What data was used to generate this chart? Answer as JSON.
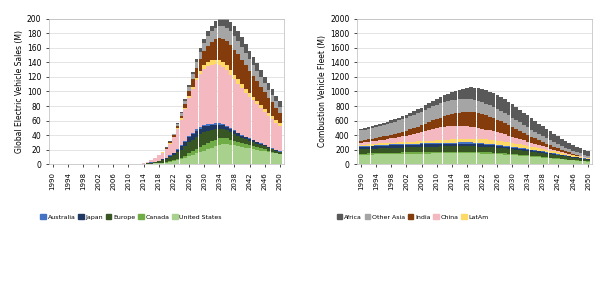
{
  "years": [
    1990,
    1991,
    1992,
    1993,
    1994,
    1995,
    1996,
    1997,
    1998,
    1999,
    2000,
    2001,
    2002,
    2003,
    2004,
    2005,
    2006,
    2007,
    2008,
    2009,
    2010,
    2011,
    2012,
    2013,
    2014,
    2015,
    2016,
    2017,
    2018,
    2019,
    2020,
    2021,
    2022,
    2023,
    2024,
    2025,
    2026,
    2027,
    2028,
    2029,
    2030,
    2031,
    2032,
    2033,
    2034,
    2035,
    2036,
    2037,
    2038,
    2039,
    2040,
    2041,
    2042,
    2043,
    2044,
    2045,
    2046,
    2047,
    2048,
    2049,
    2050
  ],
  "ev_data": {
    "United States": [
      0,
      0,
      0,
      0,
      0,
      0,
      0,
      0,
      0,
      0,
      0,
      0,
      0,
      0,
      0,
      0,
      0,
      0,
      0,
      0,
      0,
      0,
      0.1,
      0.2,
      0.4,
      0.6,
      0.9,
      1.2,
      1.6,
      2.0,
      2.5,
      3.2,
      4.0,
      5.5,
      7,
      9,
      11,
      13,
      15,
      17,
      19,
      21,
      23,
      25,
      27,
      28,
      28,
      27,
      26,
      25,
      24,
      23,
      22,
      21,
      20,
      19,
      18,
      17,
      16,
      15,
      14
    ],
    "Canada": [
      0,
      0,
      0,
      0,
      0,
      0,
      0,
      0,
      0,
      0,
      0,
      0,
      0,
      0,
      0,
      0,
      0,
      0,
      0,
      0,
      0,
      0,
      0,
      0,
      0.05,
      0.1,
      0.15,
      0.2,
      0.3,
      0.5,
      0.7,
      1.0,
      1.4,
      1.8,
      2.3,
      3,
      4,
      5,
      6,
      7,
      8,
      8.5,
      9,
      9,
      8.5,
      8,
      7.5,
      7,
      6.5,
      6,
      5.5,
      5,
      4.5,
      4,
      3.5,
      3,
      2.5,
      2,
      1.5,
      1,
      0.8
    ],
    "Europe": [
      0,
      0,
      0,
      0,
      0,
      0,
      0,
      0,
      0,
      0,
      0,
      0,
      0,
      0,
      0,
      0,
      0,
      0,
      0,
      0,
      0,
      0,
      0.1,
      0.2,
      0.4,
      0.7,
      1.0,
      1.5,
      2.2,
      3,
      4,
      5.5,
      7,
      9,
      11,
      13,
      15,
      16,
      17,
      17,
      17,
      16,
      15,
      14,
      13,
      12,
      11,
      10,
      9,
      8,
      7,
      6.5,
      6,
      5.5,
      5,
      4.5,
      4,
      3.5,
      3,
      2.5,
      2
    ],
    "Japan": [
      0,
      0,
      0,
      0,
      0,
      0,
      0,
      0,
      0,
      0,
      0,
      0,
      0,
      0,
      0,
      0,
      0,
      0,
      0,
      0,
      0,
      0,
      0.05,
      0.1,
      0.2,
      0.3,
      0.5,
      0.7,
      1.0,
      1.3,
      1.7,
      2.2,
      3,
      4,
      5,
      6,
      7,
      7.5,
      8,
      8,
      8,
      7.5,
      7,
      6.5,
      6,
      5.5,
      5,
      4.5,
      4,
      3.5,
      3,
      2.8,
      2.5,
      2.3,
      2,
      1.8,
      1.5,
      1.3,
      1.1,
      0.9,
      0.7
    ],
    "Australia": [
      0,
      0,
      0,
      0,
      0,
      0,
      0,
      0,
      0,
      0,
      0,
      0,
      0,
      0,
      0,
      0,
      0,
      0,
      0,
      0,
      0,
      0,
      0,
      0,
      0.02,
      0.04,
      0.06,
      0.1,
      0.15,
      0.2,
      0.3,
      0.4,
      0.6,
      0.8,
      1.0,
      1.3,
      1.6,
      1.8,
      2,
      2,
      2,
      1.9,
      1.8,
      1.7,
      1.6,
      1.5,
      1.4,
      1.3,
      1.2,
      1.1,
      1.0,
      0.9,
      0.85,
      0.8,
      0.75,
      0.7,
      0.65,
      0.6,
      0.55,
      0.5,
      0.45
    ]
  },
  "ev_data2": {
    "China": [
      0,
      0,
      0,
      0,
      0,
      0,
      0,
      0,
      0,
      0,
      0,
      0,
      0,
      0,
      0,
      0,
      0,
      0,
      0,
      0,
      0,
      0.1,
      0.3,
      0.5,
      1,
      2,
      3,
      5,
      7,
      9,
      12,
      16,
      21,
      28,
      35,
      43,
      52,
      60,
      67,
      73,
      77,
      80,
      81,
      81,
      80,
      78,
      76,
      73,
      70,
      67,
      64,
      60,
      57,
      54,
      51,
      48,
      45,
      42,
      40,
      37,
      35
    ],
    "LatAm": [
      0,
      0,
      0,
      0,
      0,
      0,
      0,
      0,
      0,
      0,
      0,
      0,
      0,
      0,
      0,
      0,
      0,
      0,
      0,
      0,
      0,
      0,
      0,
      0,
      0.02,
      0.05,
      0.1,
      0.15,
      0.2,
      0.3,
      0.4,
      0.6,
      0.9,
      1.2,
      1.6,
      2.1,
      2.7,
      3.3,
      4,
      4.6,
      5.2,
      5.7,
      6.1,
      6.4,
      6.6,
      6.7,
      6.7,
      6.6,
      6.5,
      6.3,
      6.1,
      5.8,
      5.5,
      5.2,
      4.9,
      4.6,
      4.3,
      4,
      3.7,
      3.4,
      3.1
    ],
    "India": [
      0,
      0,
      0,
      0,
      0,
      0,
      0,
      0,
      0,
      0,
      0,
      0,
      0,
      0,
      0,
      0,
      0,
      0,
      0,
      0,
      0,
      0,
      0,
      0,
      0.02,
      0.05,
      0.1,
      0.2,
      0.3,
      0.5,
      0.8,
      1.2,
      1.8,
      2.7,
      4,
      5.5,
      7.5,
      10,
      13,
      16,
      19,
      22,
      25,
      28,
      30,
      32,
      33,
      34,
      34,
      34,
      33,
      32,
      30,
      29,
      27,
      25,
      23,
      21,
      19,
      17,
      15
    ],
    "Other Asia": [
      0,
      0,
      0,
      0,
      0,
      0,
      0,
      0,
      0,
      0,
      0,
      0,
      0,
      0,
      0,
      0,
      0,
      0,
      0,
      0,
      0,
      0,
      0,
      0,
      0.02,
      0.05,
      0.1,
      0.2,
      0.3,
      0.5,
      0.7,
      1.1,
      1.6,
      2.3,
      3.2,
      4.3,
      5.7,
      7,
      8.5,
      10,
      11.5,
      13,
      14.5,
      16,
      17,
      18,
      18.5,
      19,
      19,
      18.5,
      18,
      17,
      16,
      15,
      14,
      13,
      12,
      11,
      10,
      9,
      8
    ],
    "Africa": [
      0,
      0,
      0,
      0,
      0,
      0,
      0,
      0,
      0,
      0,
      0,
      0,
      0,
      0,
      0,
      0,
      0,
      0,
      0,
      0,
      0,
      0,
      0,
      0,
      0.01,
      0.02,
      0.05,
      0.08,
      0.1,
      0.2,
      0.3,
      0.4,
      0.6,
      0.9,
      1.3,
      1.8,
      2.4,
      3.1,
      3.9,
      4.8,
      5.8,
      6.8,
      7.9,
      9,
      10,
      11,
      12,
      12.5,
      13,
      13,
      12.5,
      12,
      11.5,
      11,
      10.5,
      10,
      9.5,
      9,
      8.5,
      8,
      7.5
    ]
  },
  "icev_data": {
    "United States": [
      130,
      132,
      133,
      135,
      136,
      138,
      139,
      141,
      142,
      143,
      144,
      145,
      145,
      146,
      146,
      147,
      147,
      148,
      148,
      149,
      149,
      150,
      150,
      150,
      151,
      151,
      151,
      151,
      151,
      151,
      150,
      149,
      148,
      146,
      144,
      142,
      139,
      137,
      134,
      131,
      128,
      124,
      120,
      116,
      112,
      107,
      103,
      98,
      93,
      88,
      83,
      78,
      73,
      68,
      63,
      58,
      53,
      49,
      44,
      40,
      36
    ],
    "Canada": [
      15,
      15.5,
      16,
      16,
      16.5,
      17,
      17,
      17.5,
      17.5,
      18,
      18,
      18,
      18,
      18.5,
      19,
      19,
      19,
      19.5,
      20,
      20,
      20,
      20,
      20,
      20,
      20.5,
      20.5,
      21,
      21,
      21,
      21,
      20.5,
      20,
      20,
      19.5,
      19,
      18.5,
      18,
      17.5,
      17,
      16.5,
      16,
      15.5,
      15,
      14.5,
      14,
      13.5,
      13,
      12.5,
      12,
      11.5,
      11,
      10.5,
      10,
      9.5,
      9,
      8.5,
      8,
      7.5,
      7,
      6.5,
      6
    ],
    "Europe": [
      60,
      61,
      62,
      63,
      64,
      65,
      65,
      66,
      67,
      67,
      68,
      68,
      69,
      70,
      71,
      71,
      72,
      73,
      74,
      74,
      75,
      75,
      76,
      76,
      77,
      77,
      77,
      77,
      77,
      77,
      76,
      75,
      74,
      73,
      72,
      71,
      70,
      68,
      67,
      65,
      63,
      62,
      60,
      58,
      56,
      54,
      52,
      50,
      48,
      46,
      44,
      42,
      40,
      38,
      36,
      34,
      32,
      30,
      28,
      26,
      24
    ],
    "Japan": [
      30,
      31,
      31,
      32,
      32,
      33,
      33,
      33,
      34,
      34,
      34,
      34,
      34,
      35,
      35,
      35,
      35,
      36,
      36,
      36,
      36,
      36,
      36,
      36,
      36,
      36,
      36,
      36,
      36,
      35,
      34,
      33,
      32,
      31,
      30,
      29,
      28,
      27,
      26,
      25,
      24,
      23,
      22,
      21,
      20,
      19,
      18,
      17,
      16,
      15,
      14,
      13,
      12,
      11,
      10,
      9,
      8.5,
      8,
      7.5,
      7,
      6.5
    ],
    "Australia": [
      10,
      10,
      10.5,
      10.5,
      11,
      11,
      11.5,
      11.5,
      12,
      12,
      12,
      12.5,
      12.5,
      13,
      13,
      13,
      13.5,
      13.5,
      14,
      14,
      14,
      14.5,
      14.5,
      15,
      15,
      15,
      15.5,
      15.5,
      16,
      16,
      16,
      16,
      16,
      15.5,
      15,
      14.5,
      14,
      13.5,
      13,
      12.5,
      12,
      11.5,
      11,
      10.5,
      10,
      9.5,
      9,
      8.5,
      8,
      7.5,
      7,
      6.5,
      6,
      5.5,
      5,
      4.5,
      4,
      3.5,
      3,
      2.5,
      2
    ]
  },
  "icev_data2": {
    "LatAm": [
      20,
      20.5,
      21,
      21.5,
      22,
      22.5,
      23,
      23.5,
      24,
      24.5,
      25,
      25.5,
      26,
      27,
      28,
      29,
      30,
      31,
      33,
      34,
      36,
      38,
      40,
      42,
      44,
      46,
      48,
      50,
      52,
      54,
      56,
      57,
      58,
      58,
      58,
      57,
      56,
      55,
      54,
      52,
      50,
      48,
      46,
      44,
      42,
      40,
      38,
      36,
      34,
      32,
      30,
      28,
      26,
      24,
      22,
      20,
      18,
      16,
      14,
      12,
      10
    ],
    "China": [
      30,
      33,
      36,
      39,
      43,
      47,
      51,
      56,
      61,
      67,
      73,
      80,
      88,
      97,
      107,
      117,
      128,
      140,
      153,
      164,
      172,
      178,
      181,
      182,
      181,
      179,
      176,
      172,
      167,
      161,
      155,
      148,
      141,
      134,
      127,
      120,
      113,
      106,
      99,
      92,
      85,
      78,
      72,
      65,
      59,
      53,
      47,
      42,
      37,
      32,
      28,
      24,
      20,
      17,
      14,
      11,
      9,
      7,
      5.5,
      4,
      3
    ],
    "India": [
      30,
      32,
      34,
      36,
      39,
      41,
      44,
      47,
      50,
      54,
      58,
      62,
      67,
      72,
      77,
      83,
      89,
      96,
      103,
      111,
      120,
      130,
      140,
      151,
      163,
      174,
      184,
      193,
      200,
      204,
      205,
      203,
      199,
      194,
      188,
      181,
      173,
      165,
      156,
      146,
      136,
      126,
      116,
      106,
      96,
      86,
      77,
      68,
      60,
      52,
      45,
      38,
      32,
      27,
      22,
      18,
      14,
      11,
      8.5,
      6.5,
      5
    ],
    "Other Asia": [
      140,
      143,
      146,
      149,
      152,
      155,
      158,
      161,
      164,
      167,
      170,
      173,
      176,
      179,
      182,
      185,
      188,
      190,
      192,
      193,
      194,
      194,
      194,
      193,
      192,
      190,
      188,
      186,
      183,
      180,
      176,
      172,
      168,
      163,
      158,
      153,
      148,
      143,
      137,
      131,
      125,
      119,
      113,
      107,
      101,
      95,
      89,
      83,
      78,
      72,
      67,
      62,
      57,
      52,
      48,
      44,
      40,
      36,
      33,
      30,
      27
    ],
    "Africa": [
      20,
      21,
      22,
      23,
      25,
      26,
      28,
      30,
      32,
      34,
      36,
      39,
      42,
      46,
      50,
      54,
      58,
      63,
      68,
      74,
      80,
      87,
      94,
      102,
      110,
      119,
      128,
      138,
      148,
      157,
      165,
      173,
      179,
      184,
      188,
      190,
      191,
      191,
      190,
      188,
      184,
      180,
      175,
      169,
      163,
      157,
      150,
      143,
      136,
      129,
      122,
      115,
      108,
      101,
      94,
      87,
      81,
      75,
      69,
      63,
      58
    ]
  },
  "ev_colors": {
    "United States": "#a9d18e",
    "Canada": "#70ad47",
    "Europe": "#375623",
    "Japan": "#1f3864",
    "Australia": "#4472c4"
  },
  "ev_colors2": {
    "China": "#f4b8c1",
    "LatAm": "#ffd966",
    "India": "#843c0c",
    "Other Asia": "#a5a5a5",
    "Africa": "#595959"
  },
  "icev_colors": {
    "United States": "#a9d18e",
    "Canada": "#70ad47",
    "Europe": "#375623",
    "Japan": "#1f3864",
    "Australia": "#4472c4"
  },
  "icev_colors2": {
    "LatAm": "#ffd966",
    "China": "#f4b8c1",
    "India": "#843c0c",
    "Other Asia": "#a5a5a5",
    "Africa": "#595959"
  },
  "ev_ylabel": "Global Electric Vehicle Sales (M)",
  "icev_ylabel": "Combustion Vehicle Fleet (M)",
  "ev_ylim": [
    0,
    200
  ],
  "icev_ylim": [
    0,
    2000
  ],
  "ev_yticks": [
    0,
    20,
    40,
    60,
    80,
    100,
    120,
    140,
    160,
    180,
    200
  ],
  "icev_yticks": [
    0,
    200,
    400,
    600,
    800,
    1000,
    1200,
    1400,
    1600,
    1800,
    2000
  ],
  "xtick_years": [
    1990,
    1994,
    1998,
    2002,
    2006,
    2010,
    2014,
    2018,
    2022,
    2026,
    2030,
    2034,
    2038,
    2042,
    2046,
    2050
  ],
  "background_color": "#ffffff",
  "grid_color": "#d9d9d9"
}
